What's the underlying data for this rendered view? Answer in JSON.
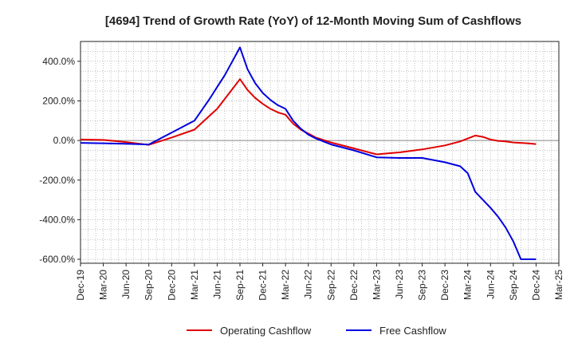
{
  "chart_data": {
    "type": "line",
    "title": "[4694]  Trend of Growth Rate (YoY) of 12-Month Moving Sum of Cashflows",
    "xlabel": "",
    "ylabel": "",
    "ylim": [
      -620,
      500
    ],
    "yticks": [
      400,
      200,
      0,
      -200,
      -400,
      -600
    ],
    "ytick_labels": [
      "400.0%",
      "200.0%",
      "0.0%",
      "-200.0%",
      "-400.0%",
      "-600.0%"
    ],
    "x_tick_labels": [
      "Dec-19",
      "Mar-20",
      "Jun-20",
      "Sep-20",
      "Dec-20",
      "Mar-21",
      "Jun-21",
      "Sep-21",
      "Dec-21",
      "Mar-22",
      "Jun-22",
      "Sep-22",
      "Dec-22",
      "Mar-23",
      "Jun-23",
      "Sep-23",
      "Dec-23",
      "Mar-24",
      "Jun-24",
      "Sep-24",
      "Dec-24",
      "Mar-25"
    ],
    "x_start_month_index": 0,
    "x_end_month_index": 63,
    "grid": true,
    "legend_position": "bottom-center",
    "series": [
      {
        "name": "Operating Cashflow",
        "color": "#e00000",
        "x": [
          0,
          3,
          6,
          9,
          12,
          15,
          18,
          20,
          21,
          22,
          23,
          24,
          25,
          26,
          27,
          28,
          29,
          30,
          31,
          33,
          36,
          39,
          42,
          45,
          48,
          50,
          52,
          53,
          54,
          55,
          56,
          57,
          58,
          59,
          60
        ],
        "values": [
          5,
          3,
          -8,
          -22,
          15,
          55,
          160,
          260,
          310,
          255,
          215,
          185,
          160,
          142,
          130,
          85,
          55,
          35,
          15,
          -10,
          -40,
          -70,
          -60,
          -45,
          -25,
          -5,
          25,
          18,
          5,
          -2,
          -5,
          -10,
          -12,
          -15,
          -18
        ]
      },
      {
        "name": "Free Cashflow",
        "color": "#0000e0",
        "x": [
          0,
          3,
          6,
          9,
          12,
          15,
          17,
          18,
          19,
          20,
          21,
          22,
          23,
          24,
          25,
          26,
          27,
          28,
          29,
          30,
          31,
          33,
          36,
          39,
          42,
          45,
          48,
          50,
          51,
          52,
          53,
          54,
          55,
          56,
          57,
          58,
          59,
          60
        ],
        "values": [
          -12,
          -14,
          -17,
          -20,
          40,
          100,
          210,
          270,
          330,
          400,
          470,
          360,
          290,
          240,
          205,
          178,
          160,
          100,
          60,
          30,
          10,
          -20,
          -50,
          -85,
          -88,
          -88,
          -110,
          -130,
          -165,
          -260,
          -300,
          -340,
          -385,
          -440,
          -510,
          -600,
          -600,
          -600
        ]
      }
    ]
  }
}
